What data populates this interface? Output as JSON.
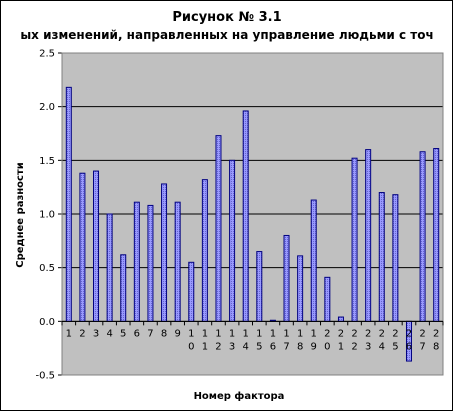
{
  "chart_data": {
    "type": "bar",
    "title": "Рисунок № 3.1",
    "subtitle": "ых изменений, направленных на управление людьми с точ",
    "xlabel": "Номер фактора",
    "ylabel": "Среднее разности",
    "ylim": [
      -0.5,
      2.5
    ],
    "yticks": [
      "-0.5",
      "0.0",
      "0.5",
      "1.0",
      "1.5",
      "2.0",
      "2.5"
    ],
    "grid": true,
    "categories": [
      "1",
      "2",
      "3",
      "4",
      "5",
      "6",
      "7",
      "8",
      "9",
      "10",
      "11",
      "12",
      "13",
      "14",
      "15",
      "16",
      "17",
      "18",
      "19",
      "20",
      "21",
      "22",
      "23",
      "24",
      "25",
      "26",
      "27",
      "28"
    ],
    "values": [
      2.18,
      1.38,
      1.4,
      1.0,
      0.62,
      1.11,
      1.08,
      1.28,
      1.11,
      0.55,
      1.32,
      1.73,
      1.5,
      1.96,
      0.65,
      0.01,
      0.8,
      0.61,
      1.13,
      0.41,
      0.04,
      1.52,
      1.6,
      1.2,
      1.18,
      -0.37,
      1.58,
      1.61
    ]
  },
  "colors": {
    "plot_background": "#c0c0c0",
    "bar_fill": "#9999ff",
    "bar_stroke": "#000080",
    "gridline": "#000000"
  }
}
